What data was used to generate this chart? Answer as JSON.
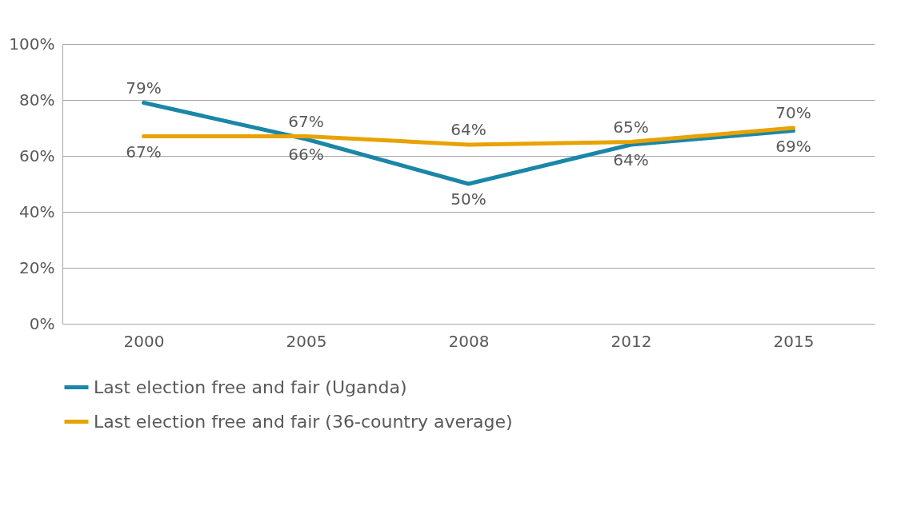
{
  "chart_data": {
    "type": "line",
    "categories": [
      "2000",
      "2005",
      "2008",
      "2012",
      "2015"
    ],
    "series": [
      {
        "name": "Last election free and fair (Uganda)",
        "color": "#1a86a8",
        "values": [
          79,
          66,
          50,
          64,
          69
        ],
        "value_labels": [
          "79%",
          "66%",
          "50%",
          "64%",
          "69%"
        ]
      },
      {
        "name": "Last election free and fair (36-country average)",
        "color": "#e8a202",
        "values": [
          67,
          67,
          64,
          65,
          70
        ],
        "value_labels": [
          "67%",
          "67%",
          "64%",
          "65%",
          "70%"
        ]
      }
    ],
    "ylim": [
      0,
      100
    ],
    "yticks": [
      {
        "value": 0,
        "label": "0%"
      },
      {
        "value": 20,
        "label": "20%"
      },
      {
        "value": 40,
        "label": "40%"
      },
      {
        "value": 60,
        "label": "60%"
      },
      {
        "value": 80,
        "label": "80%"
      },
      {
        "value": 100,
        "label": "100%"
      }
    ],
    "grid": "y",
    "legend": "bottom",
    "marker": "none",
    "line_style": "solid"
  }
}
